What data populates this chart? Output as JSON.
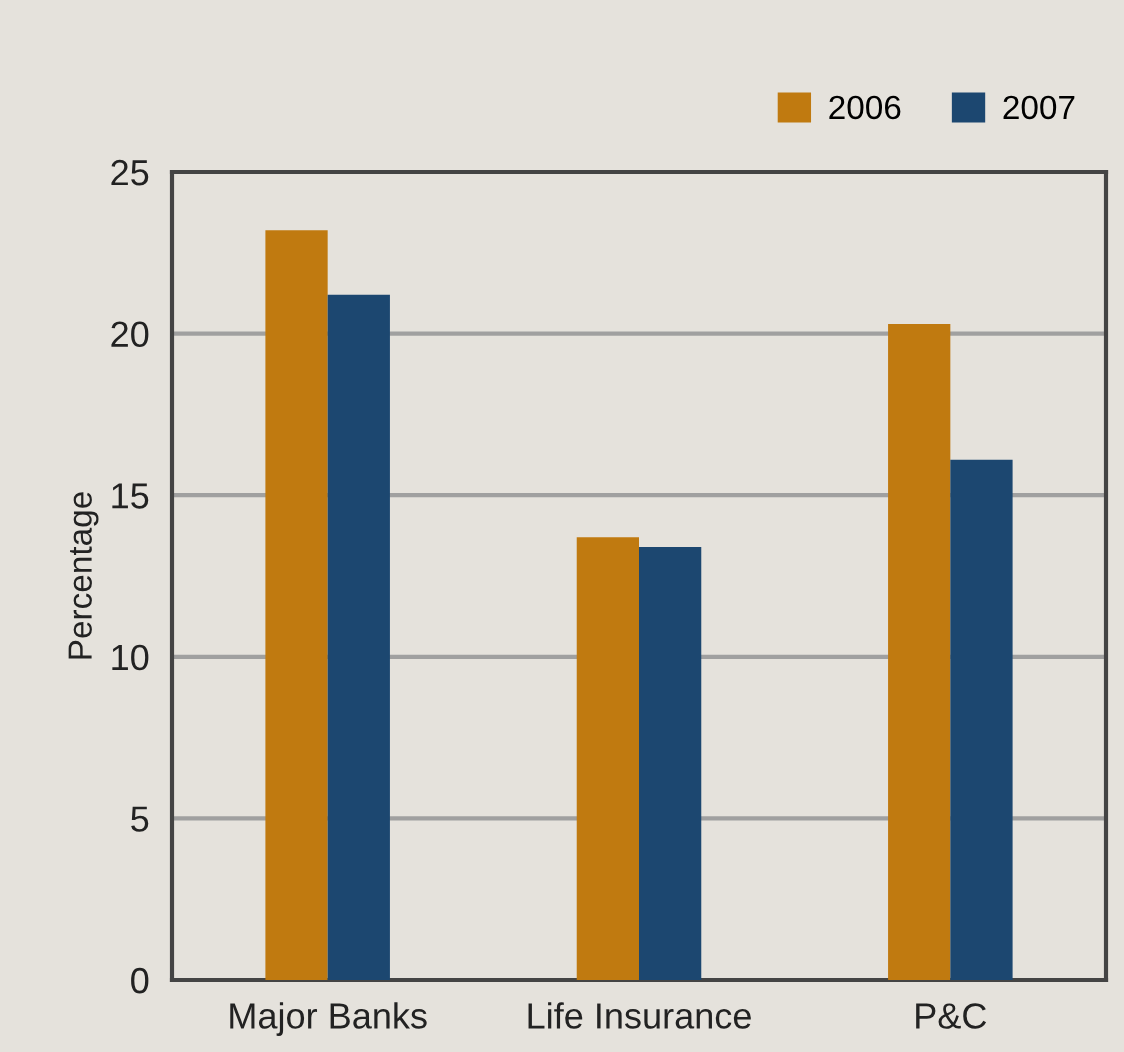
{
  "chart_data": {
    "type": "bar",
    "ylabel": "Percentage",
    "categories": [
      "Major Banks",
      "Life Insurance",
      "P&C"
    ],
    "series": [
      {
        "name": "2006",
        "color": "#c07a10",
        "values": [
          23.2,
          13.7,
          20.3
        ]
      },
      {
        "name": "2007",
        "color": "#1c4770",
        "values": [
          21.2,
          13.4,
          16.1
        ]
      }
    ],
    "ylim": [
      0,
      25
    ],
    "yticks": [
      0,
      5,
      10,
      15,
      20,
      25
    ],
    "grid": "y",
    "legend": "top right"
  }
}
